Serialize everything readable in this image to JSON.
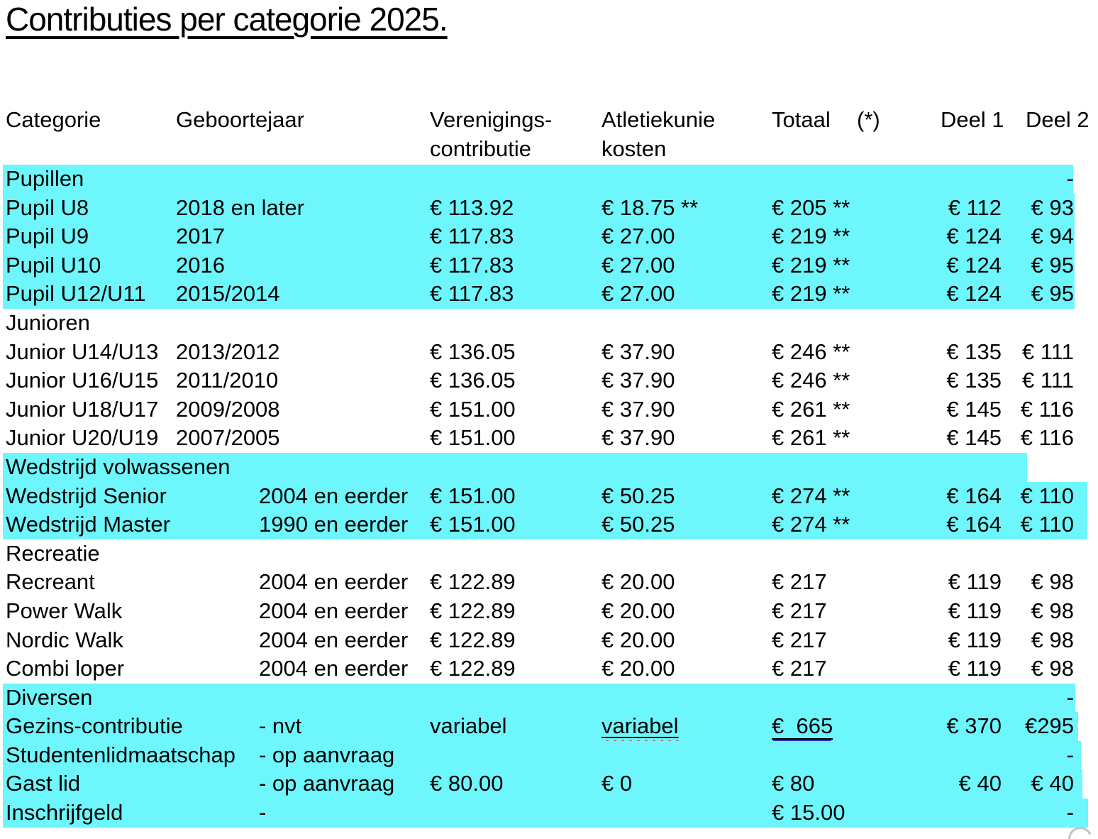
{
  "title": "Contributies per categorie 2025.",
  "columns": {
    "categorie": "Categorie",
    "geboortejaar": "Geboortejaar",
    "verenigings_l1": "Verenigings-",
    "verenigings_l2": "contributie",
    "atletiekunie_l1": "Atletiekunie",
    "atletiekunie_l2": "kosten",
    "totaal": "Totaal",
    "totaal_note": "(*)",
    "deel1": "Deel 1",
    "deel2": "Deel 2"
  },
  "highlight_color": "#6df6fb",
  "rows": [
    {
      "cat": "Pupillen",
      "d2": "-",
      "hl": 1513
    },
    {
      "cat": "Pupil U8",
      "year": "2018 en later",
      "club": "€ 113.92",
      "union": "€ 18.75 **",
      "total": "€ 205 **",
      "d1": "€ 112",
      "d2": "€ 93",
      "hl": 1515
    },
    {
      "cat": "Pupil U9",
      "year": "2017",
      "club": "€ 117.83",
      "union": "€ 27.00",
      "total": "€ 219 **",
      "d1": "€ 124",
      "d2": "€ 94",
      "hl": 1515
    },
    {
      "cat": "Pupil U10",
      "year": "2016",
      "club": "€ 117.83",
      "union": "€ 27.00",
      "total": "€ 219 **",
      "d1": "€ 124",
      "d2": "€ 95",
      "hl": 1515
    },
    {
      "cat": "Pupil U12/U11",
      "year": "2015/2014",
      "club": "€ 117.83",
      "union": "€ 27.00",
      "total": "€ 219 **",
      "d1": "€ 124",
      "d2": "€ 95",
      "hl": 1515
    },
    {
      "cat": "Junioren"
    },
    {
      "cat": "Junior U14/U13",
      "year": "2013/2012",
      "club": "€ 136.05",
      "union": "€ 37.90",
      "total": "€ 246 **",
      "d1": "€ 135",
      "d2": "€ 111"
    },
    {
      "cat": "Junior U16/U15",
      "year": "2011/2010",
      "club": "€ 136.05",
      "union": "€ 37.90",
      "total": "€ 246 **",
      "d1": "€ 135",
      "d2": "€ 111"
    },
    {
      "cat": "Junior U18/U17",
      "year": "2009/2008",
      "club": "€ 151.00",
      "union": "€ 37.90",
      "total": "€ 261 **",
      "d1": "€ 145",
      "d2": "€ 116"
    },
    {
      "cat": "Junior U20/U19",
      "year": "2007/2005",
      "club": "€ 151.00",
      "union": "€ 37.90",
      "total": "€ 261 **",
      "d1": "€ 145",
      "d2": "€ 116"
    },
    {
      "cat": "Wedstrijd volwassenen",
      "hl": 1448
    },
    {
      "cat": "Wedstrijd Senior",
      "year": "2004 en eerder",
      "far": true,
      "club": "€ 151.00",
      "union": "€ 50.25",
      "total": "€ 274 **",
      "d1": "€ 164",
      "d2": "€ 110",
      "hl": 1533
    },
    {
      "cat": "Wedstrijd Master",
      "year": "1990 en eerder",
      "far": true,
      "club": "€ 151.00",
      "union": "€ 50.25",
      "total": "€ 274 **",
      "d1": "€ 164",
      "d2": "€ 110",
      "hl": 1533
    },
    {
      "cat": "Recreatie"
    },
    {
      "cat": "Recreant",
      "year": "2004 en eerder",
      "far": true,
      "club": "€ 122.89",
      "union": "€ 20.00",
      "total": "€ 217",
      "d1": "€ 119",
      "d2": "€ 98"
    },
    {
      "cat": "Power Walk",
      "year": "2004 en eerder",
      "far": true,
      "club": "€ 122.89",
      "union": "€ 20.00",
      "total": "€ 217",
      "d1": "€ 119",
      "d2": "€ 98"
    },
    {
      "cat": "Nordic Walk",
      "year": "2004 en eerder",
      "far": true,
      "club": "€ 122.89",
      "union": "€ 20.00",
      "total": "€ 217",
      "d1": "€ 119",
      "d2": "€ 98"
    },
    {
      "cat": "Combi loper",
      "year": "2004 en eerder",
      "far": true,
      "club": "€ 122.89",
      "union": "€ 20.00",
      "total": "€ 217",
      "d1": "€ 119",
      "d2": "€ 98"
    },
    {
      "cat": "Diversen",
      "d2": "-",
      "hl": 1516
    },
    {
      "cat": "Gezins-contributie",
      "year": "- nvt",
      "far": true,
      "club": "variabel",
      "union": "variabel",
      "union_spell": true,
      "total": "€  665",
      "total_link": true,
      "d1": "€ 370",
      "d2": "€295",
      "hl": 1520
    },
    {
      "cat": "Studentenlidmaatschap",
      "year": "- op aanvraag",
      "far": true,
      "d2": "-",
      "hl": 1524
    },
    {
      "cat": "Gast lid",
      "year": "- op aanvraag",
      "far": true,
      "club": "€ 80.00",
      "union": "€ 0",
      "total": "€ 80",
      "d1": "€ 40",
      "d2": "€ 40",
      "hl": 1526
    },
    {
      "cat": "Inschrijfgeld",
      "year": "-",
      "far": true,
      "total": "€ 15.00",
      "d2": "-",
      "hl": 1534
    }
  ]
}
